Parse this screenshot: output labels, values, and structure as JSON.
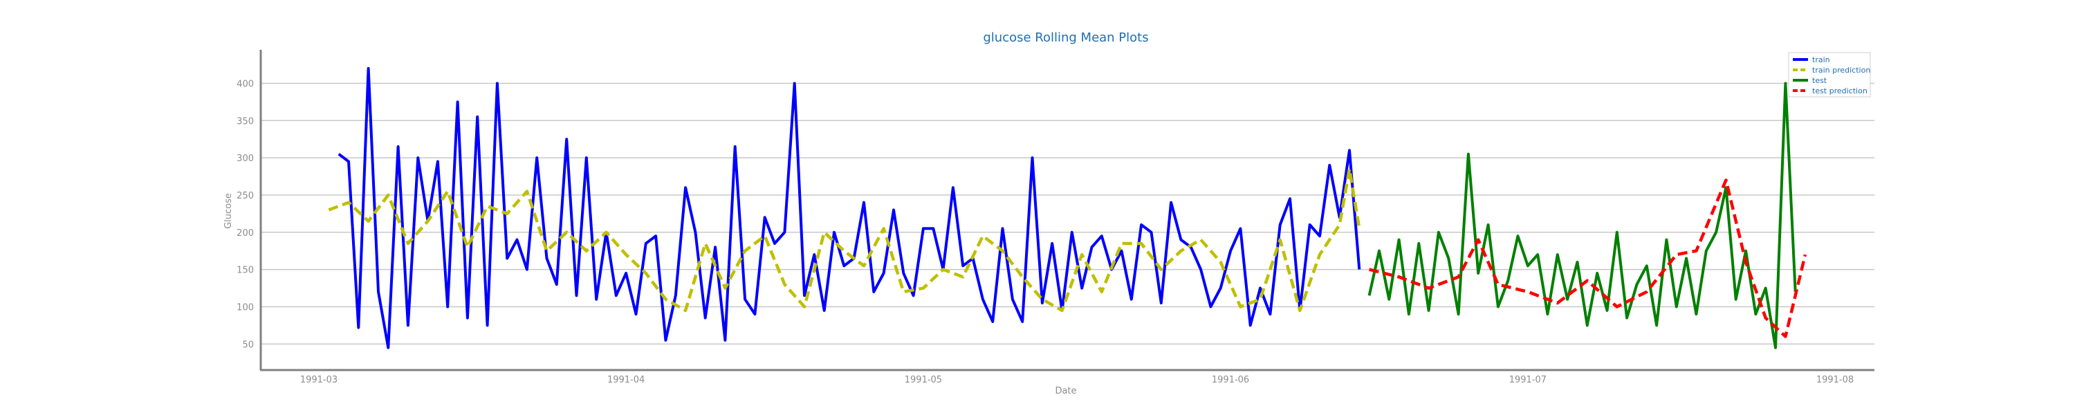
{
  "chart_data": {
    "type": "line",
    "title": "glucose Rolling Mean Plots",
    "xlabel": "Date",
    "ylabel": "Glucose",
    "x_tick_labels": [
      "1991-03",
      "1991-04",
      "1991-05",
      "1991-06",
      "1991-07",
      "1991-08"
    ],
    "y_ticks": [
      50,
      100,
      150,
      200,
      250,
      300,
      350,
      400
    ],
    "ylim": [
      15,
      445
    ],
    "grid": "horizontal",
    "legend_position": "top-right",
    "series": [
      {
        "name": "train",
        "color": "#0000ff",
        "style": "solid",
        "x": [
          "1991-03-03",
          "1991-03-04",
          "1991-03-05",
          "1991-03-06",
          "1991-03-07",
          "1991-03-08",
          "1991-03-09",
          "1991-03-10",
          "1991-03-11",
          "1991-03-12",
          "1991-03-13",
          "1991-03-14",
          "1991-03-15",
          "1991-03-16",
          "1991-03-17",
          "1991-03-18",
          "1991-03-19",
          "1991-03-20",
          "1991-03-21",
          "1991-03-22",
          "1991-03-23",
          "1991-03-24",
          "1991-03-25",
          "1991-03-26",
          "1991-03-27",
          "1991-03-28",
          "1991-03-29",
          "1991-03-30",
          "1991-03-31",
          "1991-04-01",
          "1991-04-02",
          "1991-04-03",
          "1991-04-04",
          "1991-04-05",
          "1991-04-06",
          "1991-04-07",
          "1991-04-08",
          "1991-04-09",
          "1991-04-10",
          "1991-04-11",
          "1991-04-12",
          "1991-04-13",
          "1991-04-14",
          "1991-04-15",
          "1991-04-16",
          "1991-04-17",
          "1991-04-18",
          "1991-04-19",
          "1991-04-20",
          "1991-04-21",
          "1991-04-22",
          "1991-04-23",
          "1991-04-24",
          "1991-04-25",
          "1991-04-26",
          "1991-04-27",
          "1991-04-28",
          "1991-04-29",
          "1991-04-30",
          "1991-05-01",
          "1991-05-02",
          "1991-05-03",
          "1991-05-04",
          "1991-05-05",
          "1991-05-06",
          "1991-05-07",
          "1991-05-08",
          "1991-05-09",
          "1991-05-10",
          "1991-05-11",
          "1991-05-12",
          "1991-05-13",
          "1991-05-14",
          "1991-05-15",
          "1991-05-16",
          "1991-05-17",
          "1991-05-18",
          "1991-05-19",
          "1991-05-20",
          "1991-05-21",
          "1991-05-22",
          "1991-05-23",
          "1991-05-24",
          "1991-05-25",
          "1991-05-26",
          "1991-05-27",
          "1991-05-28",
          "1991-05-29",
          "1991-05-30",
          "1991-05-31",
          "1991-06-01",
          "1991-06-02",
          "1991-06-03",
          "1991-06-04",
          "1991-06-05",
          "1991-06-06",
          "1991-06-07",
          "1991-06-08",
          "1991-06-09",
          "1991-06-10",
          "1991-06-11",
          "1991-06-12",
          "1991-06-13",
          "1991-06-14"
        ],
        "values": [
          305,
          295,
          72,
          420,
          120,
          45,
          315,
          75,
          300,
          215,
          295,
          100,
          375,
          85,
          355,
          75,
          400,
          165,
          190,
          150,
          300,
          165,
          130,
          325,
          115,
          300,
          110,
          200,
          115,
          145,
          90,
          185,
          195,
          55,
          115,
          260,
          200,
          85,
          180,
          55,
          315,
          110,
          90,
          220,
          185,
          200,
          400,
          115,
          170,
          95,
          200,
          155,
          165,
          240,
          120,
          145,
          230,
          145,
          115,
          205,
          205,
          150,
          260,
          155,
          165,
          110,
          80,
          205,
          110,
          80,
          300,
          105,
          185,
          95,
          200,
          125,
          180,
          195,
          150,
          175,
          110,
          210,
          200,
          105,
          240,
          190,
          180,
          150,
          100,
          125,
          175,
          205,
          75,
          125,
          90,
          210,
          245,
          95,
          210,
          195,
          290,
          220,
          310,
          150
        ]
      },
      {
        "name": "train prediction",
        "color": "#bfbf00",
        "style": "dashed",
        "x": [
          "1991-03-02",
          "1991-03-04",
          "1991-03-06",
          "1991-03-08",
          "1991-03-10",
          "1991-03-12",
          "1991-03-14",
          "1991-03-16",
          "1991-03-18",
          "1991-03-20",
          "1991-03-22",
          "1991-03-24",
          "1991-03-26",
          "1991-03-28",
          "1991-03-30",
          "1991-04-01",
          "1991-04-03",
          "1991-04-05",
          "1991-04-07",
          "1991-04-09",
          "1991-04-11",
          "1991-04-13",
          "1991-04-15",
          "1991-04-17",
          "1991-04-19",
          "1991-04-21",
          "1991-04-23",
          "1991-04-25",
          "1991-04-27",
          "1991-04-29",
          "1991-05-01",
          "1991-05-03",
          "1991-05-05",
          "1991-05-07",
          "1991-05-09",
          "1991-05-11",
          "1991-05-13",
          "1991-05-15",
          "1991-05-17",
          "1991-05-19",
          "1991-05-21",
          "1991-05-23",
          "1991-05-25",
          "1991-05-27",
          "1991-05-29",
          "1991-05-31",
          "1991-06-02",
          "1991-06-04",
          "1991-06-06",
          "1991-06-08",
          "1991-06-10",
          "1991-06-12",
          "1991-06-13",
          "1991-06-14"
        ],
        "values": [
          230,
          240,
          215,
          250,
          185,
          215,
          255,
          180,
          235,
          225,
          255,
          175,
          200,
          175,
          200,
          170,
          145,
          110,
          95,
          185,
          125,
          175,
          195,
          130,
          100,
          200,
          175,
          155,
          205,
          120,
          125,
          150,
          140,
          195,
          175,
          140,
          110,
          95,
          170,
          120,
          185,
          185,
          150,
          175,
          190,
          160,
          100,
          110,
          190,
          95,
          170,
          210,
          285,
          205
        ]
      },
      {
        "name": "test",
        "color": "#008000",
        "style": "solid",
        "x": [
          "1991-06-15",
          "1991-06-16",
          "1991-06-17",
          "1991-06-18",
          "1991-06-19",
          "1991-06-20",
          "1991-06-21",
          "1991-06-22",
          "1991-06-23",
          "1991-06-24",
          "1991-06-25",
          "1991-06-26",
          "1991-06-27",
          "1991-06-28",
          "1991-06-29",
          "1991-06-30",
          "1991-07-01",
          "1991-07-02",
          "1991-07-03",
          "1991-07-04",
          "1991-07-05",
          "1991-07-06",
          "1991-07-07",
          "1991-07-08",
          "1991-07-09",
          "1991-07-10",
          "1991-07-11",
          "1991-07-12",
          "1991-07-13",
          "1991-07-14",
          "1991-07-15",
          "1991-07-16",
          "1991-07-17",
          "1991-07-18",
          "1991-07-19",
          "1991-07-20",
          "1991-07-21",
          "1991-07-22",
          "1991-07-23",
          "1991-07-24",
          "1991-07-25",
          "1991-07-26",
          "1991-07-27",
          "1991-07-28"
        ],
        "values": [
          115,
          175,
          110,
          190,
          90,
          185,
          95,
          200,
          165,
          90,
          305,
          145,
          210,
          100,
          135,
          195,
          155,
          170,
          90,
          170,
          110,
          160,
          75,
          145,
          95,
          200,
          85,
          130,
          155,
          75,
          190,
          100,
          165,
          90,
          175,
          200,
          260,
          110,
          175,
          90,
          125,
          45,
          400,
          120
        ]
      },
      {
        "name": "test prediction",
        "color": "#ff0000",
        "style": "dashed",
        "x": [
          "1991-06-15",
          "1991-06-18",
          "1991-06-21",
          "1991-06-24",
          "1991-06-26",
          "1991-06-28",
          "1991-07-01",
          "1991-07-04",
          "1991-07-07",
          "1991-07-10",
          "1991-07-13",
          "1991-07-16",
          "1991-07-18",
          "1991-07-21",
          "1991-07-23",
          "1991-07-25",
          "1991-07-27",
          "1991-07-29"
        ],
        "values": [
          150,
          140,
          125,
          140,
          190,
          130,
          120,
          105,
          135,
          100,
          120,
          170,
          175,
          270,
          160,
          85,
          60,
          170
        ]
      }
    ]
  }
}
